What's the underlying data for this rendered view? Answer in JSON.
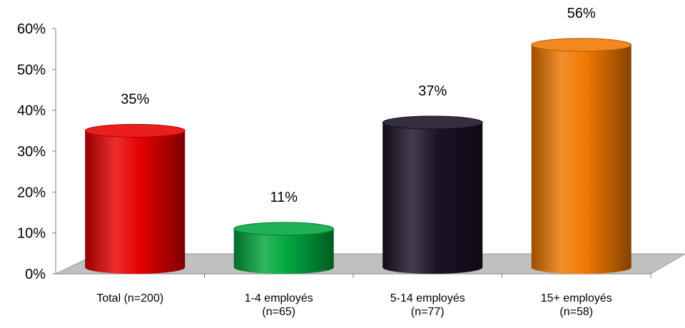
{
  "chart_data": {
    "type": "bar",
    "categories": [
      [
        "Total (n=200)"
      ],
      [
        "1-4 employés",
        "(n=65)"
      ],
      [
        "5-14 employés",
        "(n=77)"
      ],
      [
        "15+ employés",
        "(n=58)"
      ]
    ],
    "values": [
      35,
      11,
      37,
      56
    ],
    "value_labels": [
      "35%",
      "11%",
      "37%",
      "56%"
    ],
    "y_ticks": [
      "0%",
      "10%",
      "20%",
      "30%",
      "40%",
      "50%",
      "60%"
    ],
    "ylim": [
      0,
      60
    ],
    "bar_colors": [
      "#e60000",
      "#00a63d",
      "#1b1226",
      "#f07800"
    ],
    "floor_color": "#c0c0c0",
    "grid": false,
    "legend": "none"
  }
}
